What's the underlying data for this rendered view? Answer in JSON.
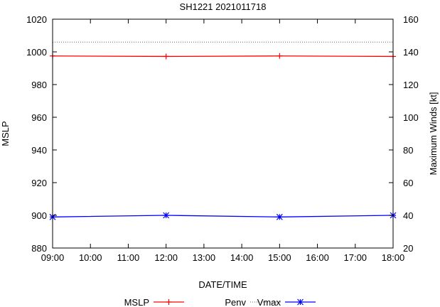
{
  "chart_data": {
    "type": "line",
    "title": "SH1221 2021011718",
    "xlabel": "DATE/TIME",
    "ylabel": "MSLP",
    "y2label": "Maximum Winds [kt]",
    "x": [
      9,
      12,
      15,
      18
    ],
    "x_ticks": [
      9,
      10,
      11,
      12,
      13,
      14,
      15,
      16,
      17,
      18
    ],
    "x_tick_labels": [
      "09:00",
      "10:00",
      "11:00",
      "12:00",
      "13:00",
      "14:00",
      "15:00",
      "16:00",
      "17:00",
      "18:00"
    ],
    "xlim": [
      9,
      18
    ],
    "ylim": [
      880,
      1020
    ],
    "y_ticks": [
      880,
      900,
      920,
      940,
      960,
      980,
      1000,
      1020
    ],
    "y_tick_labels": [
      "880",
      "900",
      "920",
      "940",
      "960",
      "980",
      "1000",
      "1020"
    ],
    "y2lim": [
      20,
      160
    ],
    "y2_ticks": [
      20,
      40,
      60,
      80,
      100,
      120,
      140,
      160
    ],
    "y2_tick_labels": [
      "20",
      "40",
      "60",
      "80",
      "100",
      "120",
      "140",
      "160"
    ],
    "series": [
      {
        "name": "MSLP",
        "axis": "left",
        "color": "#ff0000",
        "marker": "plus",
        "values": [
          997.5,
          997.2,
          997.5,
          997.2
        ]
      },
      {
        "name": "Penv",
        "axis": "left",
        "color": "#606060",
        "marker": "none",
        "dashed": true,
        "values": [
          1006,
          1006,
          1006,
          1006
        ]
      },
      {
        "name": "Vmax",
        "axis": "right",
        "color": "#0000ff",
        "marker": "star",
        "values": [
          39,
          40,
          39,
          40
        ]
      }
    ],
    "legend_position": "bottom"
  }
}
